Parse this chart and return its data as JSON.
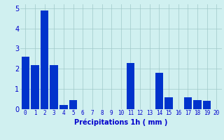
{
  "categories": [
    0,
    1,
    2,
    3,
    4,
    5,
    6,
    7,
    8,
    9,
    10,
    11,
    12,
    13,
    14,
    15,
    16,
    17,
    18,
    19,
    20
  ],
  "values": [
    2.6,
    2.2,
    4.9,
    2.2,
    0.2,
    0.45,
    0,
    0,
    0,
    0,
    0,
    2.3,
    0,
    0,
    1.8,
    0.6,
    0,
    0.6,
    0.45,
    0.4,
    0
  ],
  "bar_color": "#0033cc",
  "background_color": "#d0f0f0",
  "grid_color": "#a0c8c8",
  "xlabel": "Précipitations 1h ( mm )",
  "xlabel_color": "#0000cc",
  "tick_color": "#0000cc",
  "ylim": [
    0,
    5.2
  ],
  "yticks": [
    0,
    1,
    2,
    3,
    4,
    5
  ],
  "bar_width": 0.85,
  "figsize": [
    3.2,
    2.0
  ],
  "dpi": 100
}
